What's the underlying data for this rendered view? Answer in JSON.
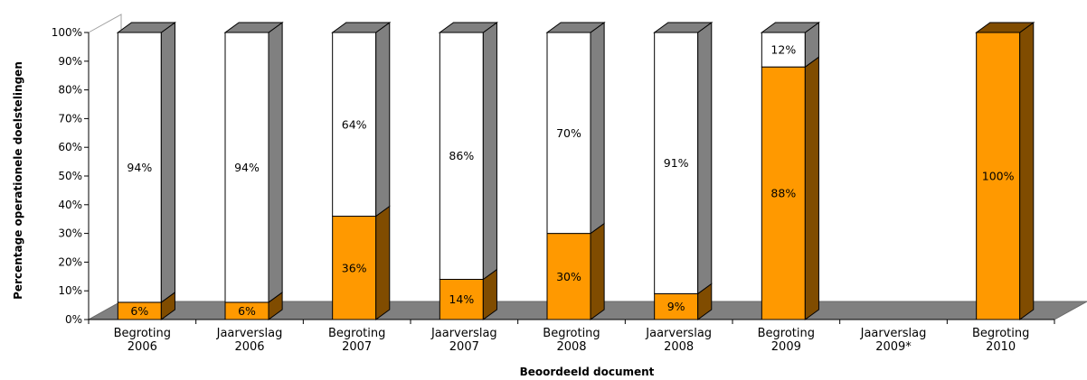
{
  "chart_data": {
    "type": "bar",
    "stacked": true,
    "three_d": true,
    "categories": [
      [
        "Begroting",
        "2006"
      ],
      [
        "Jaarverslag",
        "2006"
      ],
      [
        "Begroting",
        "2007"
      ],
      [
        "Jaarverslag",
        "2007"
      ],
      [
        "Begroting",
        "2008"
      ],
      [
        "Jaarverslag",
        "2008"
      ],
      [
        "Begroting",
        "2009"
      ],
      [
        "Jaarverslag",
        "2009*"
      ],
      [
        "Begroting",
        "2010"
      ]
    ],
    "series": [
      {
        "color": "#ff9900",
        "side_color": "#804c00",
        "values": [
          6,
          6,
          36,
          14,
          30,
          9,
          88,
          null,
          100
        ],
        "labels": [
          "6%",
          "6%",
          "36%",
          "14%",
          "30%",
          "9%",
          "88%",
          "",
          "100%"
        ]
      },
      {
        "color": "#ffffff",
        "side_color": "#808080",
        "values": [
          94,
          94,
          64,
          86,
          70,
          91,
          12,
          null,
          null
        ],
        "labels": [
          "94%",
          "94%",
          "64%",
          "86%",
          "70%",
          "91%",
          "12%",
          "",
          ""
        ]
      }
    ],
    "xlabel": "Beoordeeld document",
    "ylabel": "Percentage operationele doelstelingen",
    "ylim": [
      0,
      100
    ],
    "yticks": [
      "0%",
      "10%",
      "20%",
      "30%",
      "40%",
      "50%",
      "60%",
      "70%",
      "80%",
      "90%",
      "100%"
    ],
    "wall_color": "#ffffff",
    "floor_color": "#808080",
    "legend": "none",
    "grid": false
  }
}
